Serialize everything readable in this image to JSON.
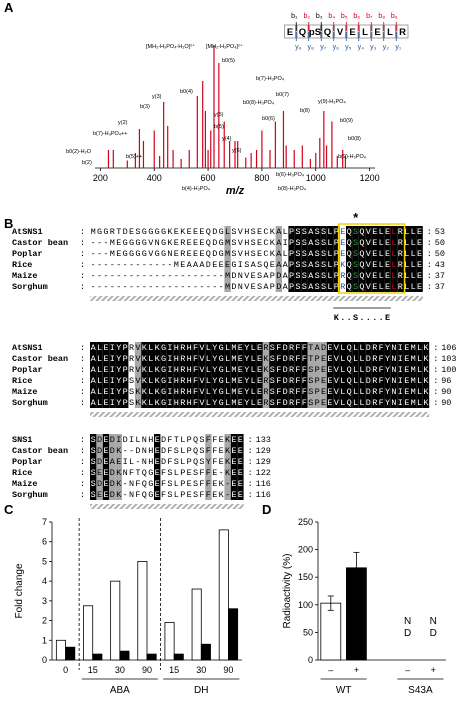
{
  "panel_labels": [
    "A",
    "B",
    "C",
    "D"
  ],
  "chart_data": [
    {
      "type": "spectrum",
      "xlabel": "m/z",
      "xlim": [
        180,
        1220
      ],
      "xticks": [
        200,
        400,
        600,
        800,
        1000,
        1200
      ],
      "color": "#d0021b",
      "x": [
        230,
        248,
        300,
        330,
        345,
        360,
        400,
        420,
        435,
        450,
        470,
        500,
        530,
        560,
        580,
        590,
        600,
        610,
        622,
        640,
        660,
        680,
        700,
        710,
        740,
        760,
        780,
        800,
        830,
        850,
        880,
        890,
        920,
        950,
        980,
        1000,
        1015,
        1030,
        1040,
        1060,
        1080,
        1100,
        1110
      ],
      "values": [
        12,
        12,
        5,
        10,
        26,
        18,
        25,
        8,
        44,
        28,
        12,
        6,
        12,
        48,
        58,
        38,
        12,
        25,
        82,
        70,
        31,
        18,
        18,
        18,
        7,
        10,
        12,
        25,
        12,
        31,
        38,
        15,
        12,
        15,
        6,
        10,
        20,
        38,
        15,
        31,
        8,
        12,
        8
      ],
      "annotations": [
        "[MH₂-H₃PO₄-H₂O]²⁺",
        "[MH₂-H₃PO₄]²⁺",
        "b0(5)",
        "b0(4)",
        "y(3)",
        "b(3)",
        "y(2)",
        "b(7)-H₃PO₄++",
        "b0(2)-H₂O",
        "b(2)",
        "b(5)++",
        "y(5)",
        "b(5)",
        "y(4)",
        "y(6)",
        "b(7)-H₃PO₄",
        "b0(8)-H₃PO₄",
        "b0(6)",
        "b0(7)",
        "b(8)",
        "y(9)-H₃PO₄",
        "b0(9)",
        "b(9)-H₃PO₄",
        "b(4)-H₃PO₄",
        "b(8)-H₃PO₄",
        "b(6)-H₃PO₄",
        "b0(8)"
      ],
      "sequence": {
        "residues": [
          "E",
          "Q",
          "pS",
          "Q",
          "V",
          "E",
          "L",
          "E",
          "L",
          "R"
        ],
        "b_ions": [
          "b₁",
          "b₂",
          "b₃",
          "b₄",
          "b₅",
          "b₆",
          "b₇",
          "b₈",
          "b₉"
        ],
        "b_colors": [
          "#000000",
          "#d0021b",
          "#000000",
          "#d0021b",
          "#d0021b",
          "#d0021b",
          "#d0021b",
          "#d0021b",
          "#d0021b"
        ],
        "y_ions": [
          "y₉",
          "y₈",
          "y₇",
          "y₆",
          "y₅",
          "y₄",
          "y₃",
          "y₂",
          "y₁"
        ],
        "y_color": "#1f4e9c"
      }
    },
    {
      "type": "bar",
      "ylabel": "Fold change",
      "categories": [
        "0",
        "15",
        "30",
        "90",
        "15",
        "30",
        "90"
      ],
      "groups": [
        {
          "label": "ABA",
          "categories": [
            1,
            2,
            3
          ]
        },
        {
          "label": "DH",
          "categories": [
            4,
            5,
            6
          ]
        }
      ],
      "dashed_separators": true,
      "series": [
        {
          "color": "#ffffff",
          "values": [
            1.0,
            2.75,
            4.0,
            5.0,
            1.9,
            3.6,
            6.6
          ]
        },
        {
          "color": "#000000",
          "values": [
            0.65,
            0.3,
            0.45,
            0.3,
            0.3,
            0.8,
            2.6
          ]
        }
      ],
      "ylim": [
        0,
        7
      ],
      "yticks": [
        0,
        1,
        2,
        3,
        4,
        5,
        6,
        7
      ]
    },
    {
      "type": "bar",
      "ylabel": "Radioactivity (%)",
      "categories": [
        "–",
        "+",
        "–",
        "+"
      ],
      "groups": [
        {
          "label": "WT",
          "categories": [
            0,
            1
          ]
        },
        {
          "label": "S43A",
          "categories": [
            2,
            3
          ]
        }
      ],
      "values": [
        103,
        167,
        null,
        null
      ],
      "errors": [
        13,
        28,
        null,
        null
      ],
      "value_labels": [
        null,
        null,
        "ND",
        "ND"
      ],
      "colors": [
        "#ffffff",
        "#000000",
        "#ffffff",
        "#000000"
      ],
      "ylim": [
        0,
        250
      ],
      "yticks": [
        0,
        50,
        100,
        150,
        200,
        250
      ]
    }
  ],
  "alignment": {
    "separator": ":",
    "star": "*",
    "motif": "K..S....E",
    "blocks": [
      {
        "rows": [
          {
            "name": "AtSNS1",
            "sequence": "MGGRTDESGGGGKEKEEEQDGLSVHSECKALPSSASSLPEQSQVELELRLLE",
            "end": 53
          },
          {
            "name": "Castor bean",
            "sequence": "---MEGGGGVNGKEREEEQDGMSVHSECKAIPSSASSLPEQSQVELELRLLE",
            "end": 50
          },
          {
            "name": "Poplar",
            "sequence": "---MEGGGGVGGNEREEEQDGMSVHSECKALPSSASSLPEQSQVELELRLLE",
            "end": 50
          },
          {
            "name": "Rice",
            "sequence": "-------------MEAAADEEEGISASQEAAPSSASSLPKQSQVELELRLLE",
            "end": 43
          },
          {
            "name": "Maize",
            "sequence": "---------------------MDNVESAPDAPSSASSLPRQSQVELELRLLE",
            "end": 37
          },
          {
            "name": "Sorghum",
            "sequence": "---------------------MDNVESAPDAPSSASSLPRQSQVELELRLLE",
            "end": 37
          }
        ]
      },
      {
        "rows": [
          {
            "name": "AtSNS1",
            "sequence": "ALEIYPRVKLKGIHRHFVLYGLMEYLERSFDRFFTADEVLQLLDRFYNIEMLK",
            "end": 106
          },
          {
            "name": "Castor bean",
            "sequence": "ALEIYPRVKLKGIHRHFVLYGLMEYLEKSFDRFFTPEEVLQLLDRFYNIEMLK",
            "end": 103
          },
          {
            "name": "Poplar",
            "sequence": "ALEIYPRVKLKGIHRHFVLYGLMEYLEKSFDRFFSPEEVLQLLDRFYNIEMLK",
            "end": 100
          },
          {
            "name": "Rice",
            "sequence": "ALEIYPSVKLKGIHRHFVLYGLMEYLERSFDRFFSPEEVLQLLDRFYNIEMLK",
            "end": 96
          },
          {
            "name": "Maize",
            "sequence": "ALEIYPSKKLKGIHRHFVLYGLMEYLERSFDRFFSPEEVLQLLDRFYNIEMLK",
            "end": 90
          },
          {
            "name": "Sorghum",
            "sequence": "ALEIYPSKKLKGIHRHFVLYGLMEYLERSFDRFFSPEEVLQLLDRFYNIEMLK",
            "end": 90
          }
        ]
      },
      {
        "rows": [
          {
            "name": "SNS1",
            "sequence": "SDEDIDILNHEDFTLPQSFFEKEE",
            "end": 133
          },
          {
            "name": "Castor bean",
            "sequence": "SDEDK--DNHEDFSLPQSFFEKEE",
            "end": 129
          },
          {
            "name": "Poplar",
            "sequence": "SDEAEIL-NHEDFSLPQSYFEKEE",
            "end": 129
          },
          {
            "name": "Rice",
            "sequence": "SEEDKNFTQGEFSLPESFFE-KEE",
            "end": 122
          },
          {
            "name": "Maize",
            "sequence": "SDEDK-NFQGEFSLPESFFEK-EE",
            "end": 116
          },
          {
            "name": "Sorghum",
            "sequence": "SEEDK-NFQGEFSLPESFFEK-EE",
            "end": 116
          }
        ]
      }
    ]
  }
}
